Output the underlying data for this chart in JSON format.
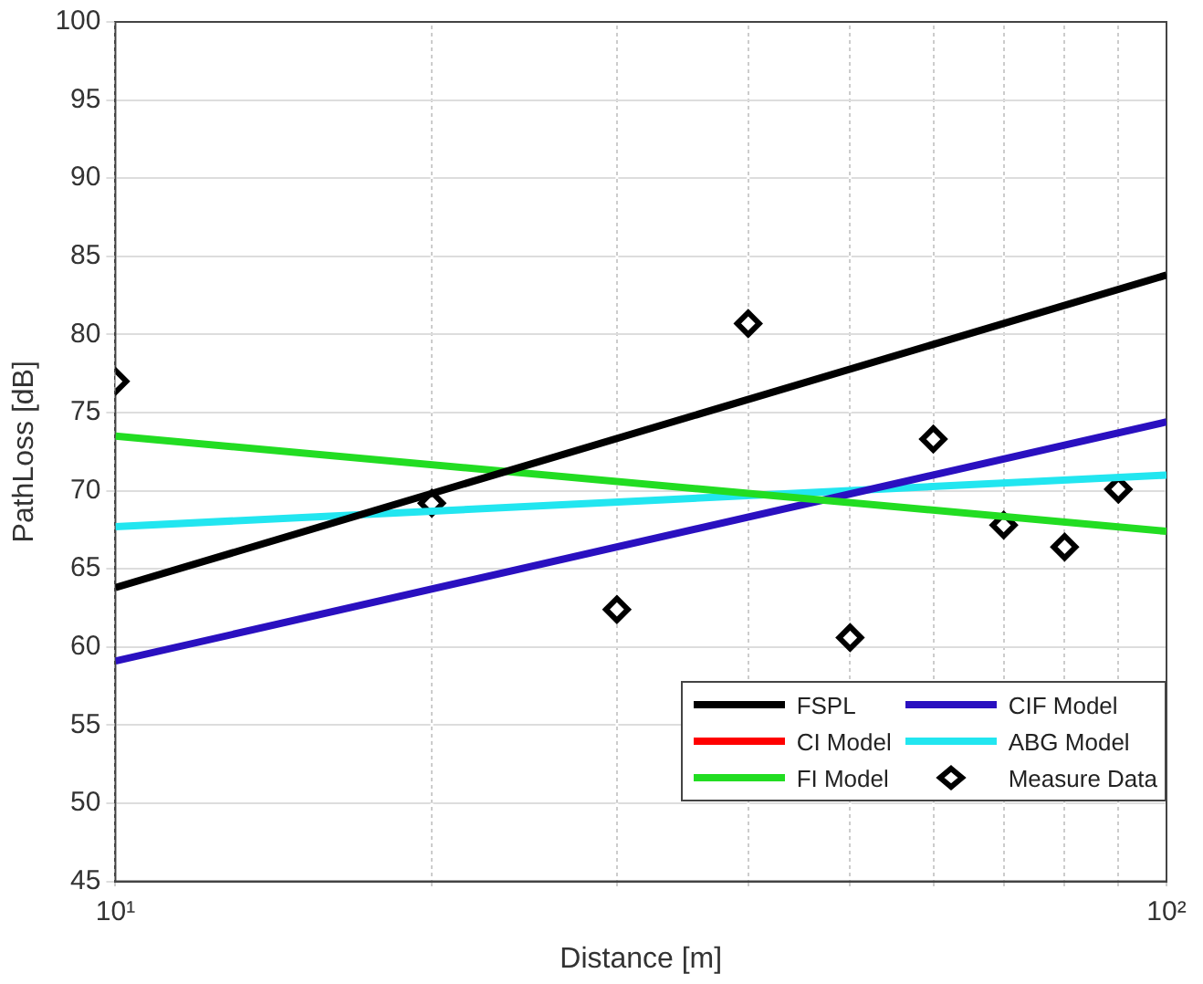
{
  "chart_data": {
    "type": "line",
    "xlabel": "Distance [m]",
    "ylabel": "PathLoss [dB]",
    "log": "x",
    "xlim": [
      10,
      100
    ],
    "ylim": [
      45,
      100
    ],
    "xticks": [
      {
        "value": 10,
        "label": "10¹"
      },
      {
        "value": 20,
        "label": null
      },
      {
        "value": 30,
        "label": null
      },
      {
        "value": 40,
        "label": null
      },
      {
        "value": 50,
        "label": null
      },
      {
        "value": 60,
        "label": null
      },
      {
        "value": 70,
        "label": null
      },
      {
        "value": 80,
        "label": null
      },
      {
        "value": 90,
        "label": null
      },
      {
        "value": 100,
        "label": "10²"
      }
    ],
    "yticks": [
      45,
      50,
      55,
      60,
      65,
      70,
      75,
      80,
      85,
      90,
      95,
      100
    ],
    "grid": true,
    "legend": "bottom right",
    "line_style": "solid",
    "series": [
      {
        "name": "FSPL",
        "color": "#000000",
        "x": [
          10,
          100
        ],
        "values": [
          63.8,
          83.8
        ],
        "marker": "none"
      },
      {
        "name": "CI Model",
        "color": "#ff0000",
        "marker": "none"
      },
      {
        "name": "FI Model",
        "color": "#22dd22",
        "x": [
          10,
          100
        ],
        "values": [
          73.5,
          67.4
        ],
        "marker": "none"
      },
      {
        "name": "CIF Model",
        "color": "#2a10c0",
        "x": [
          10,
          100
        ],
        "values": [
          59.1,
          74.4
        ],
        "marker": "none"
      },
      {
        "name": "ABG Model",
        "color": "#22e6f0",
        "x": [
          10,
          100
        ],
        "values": [
          67.7,
          71.0
        ],
        "marker": "none"
      },
      {
        "name": "Measure Data",
        "type": "scatter",
        "color": "#000000",
        "x": [
          10,
          20,
          30,
          40,
          50,
          60,
          70,
          80,
          90
        ],
        "values": [
          77,
          69.2,
          62.4,
          80.7,
          60.6,
          73.3,
          67.8,
          66.4,
          70.1
        ],
        "marker": "diamond"
      }
    ]
  }
}
